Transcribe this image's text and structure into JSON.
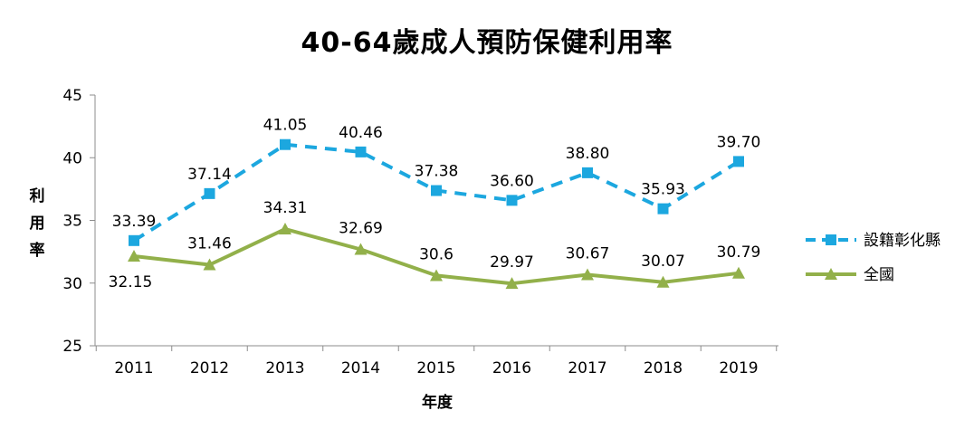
{
  "chart_data": {
    "type": "line",
    "title": "40-64歲成人預防保健利用率",
    "xlabel": "年度",
    "ylabel": "利用率",
    "categories": [
      "2011",
      "2012",
      "2013",
      "2014",
      "2015",
      "2016",
      "2017",
      "2018",
      "2019"
    ],
    "ylim": [
      25,
      45
    ],
    "yticks": [
      "25",
      "30",
      "35",
      "40",
      "45"
    ],
    "grid": false,
    "legend_position": "right",
    "series": [
      {
        "name": "設籍彰化縣",
        "values": [
          33.39,
          37.14,
          41.05,
          40.46,
          37.38,
          36.6,
          38.8,
          35.93,
          39.7
        ],
        "labels": [
          "33.39",
          "37.14",
          "41.05",
          "40.46",
          "37.38",
          "36.60",
          "38.80",
          "35.93",
          "39.70"
        ],
        "color": "#1CA7DF",
        "style": "dashed",
        "marker": "square"
      },
      {
        "name": "全國",
        "values": [
          32.15,
          31.46,
          34.31,
          32.69,
          30.6,
          29.97,
          30.67,
          30.07,
          30.79
        ],
        "labels": [
          "32.15",
          "31.46",
          "34.31",
          "32.69",
          "30.6",
          "29.97",
          "30.67",
          "30.07",
          "30.79"
        ],
        "color": "#92B04A",
        "style": "solid",
        "marker": "triangle"
      }
    ]
  }
}
